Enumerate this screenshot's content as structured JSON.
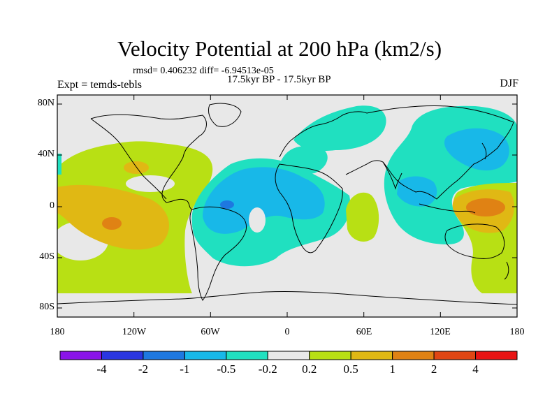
{
  "chart_data": {
    "type": "heatmap",
    "title": "Velocity Potential at 200 hPa (km2/s)",
    "stats_line": "rmsd= 0.406232 diff= -6.94513e-05",
    "subtitle": "17.5kyr BP - 17.5kyr BP",
    "experiment": "Expt = temds-tebls",
    "season": "DJF",
    "x_ticks": [
      "180",
      "120W",
      "60W",
      "0",
      "60E",
      "120E",
      "180"
    ],
    "y_ticks": [
      "80N",
      "40N",
      "0",
      "40S",
      "80S"
    ],
    "xlim": [
      -180,
      180
    ],
    "ylim": [
      -90,
      90
    ],
    "colorbar": {
      "levels": [
        "-4",
        "-2",
        "-1",
        "-0.5",
        "-0.2",
        "0.2",
        "0.5",
        "1",
        "2",
        "4"
      ],
      "colors": [
        "#8a14e8",
        "#2a36e0",
        "#1e78e0",
        "#18b8e8",
        "#20e0c0",
        "#e8e8e8",
        "#b8e014",
        "#e0b814",
        "#e08214",
        "#e04614",
        "#e81414"
      ]
    },
    "regions": [
      {
        "name": "north pacific positive",
        "level": 0.5,
        "center": [
          -140,
          28
        ]
      },
      {
        "name": "tropical east pacific positive",
        "level": 1,
        "center": [
          -140,
          0
        ]
      },
      {
        "name": "tropical east pacific max",
        "level": 2,
        "center": [
          -140,
          -12
        ]
      },
      {
        "name": "atlantic-africa negative",
        "level": -0.5,
        "center": [
          -30,
          10
        ]
      },
      {
        "name": "atlantic-africa core",
        "level": -1,
        "center": [
          -20,
          15
        ]
      },
      {
        "name": "south america min",
        "level": -2,
        "center": [
          -48,
          -2
        ]
      },
      {
        "name": "east asia negative",
        "level": -0.5,
        "center": [
          120,
          40
        ]
      },
      {
        "name": "east asia core",
        "level": -1,
        "center": [
          130,
          48
        ]
      },
      {
        "name": "west pacific positive",
        "level": 1,
        "center": [
          160,
          -2
        ]
      },
      {
        "name": "west pacific core",
        "level": 2,
        "center": [
          158,
          0
        ]
      },
      {
        "name": "indian ocean positive",
        "level": 0.5,
        "center": [
          60,
          -10
        ]
      }
    ]
  }
}
